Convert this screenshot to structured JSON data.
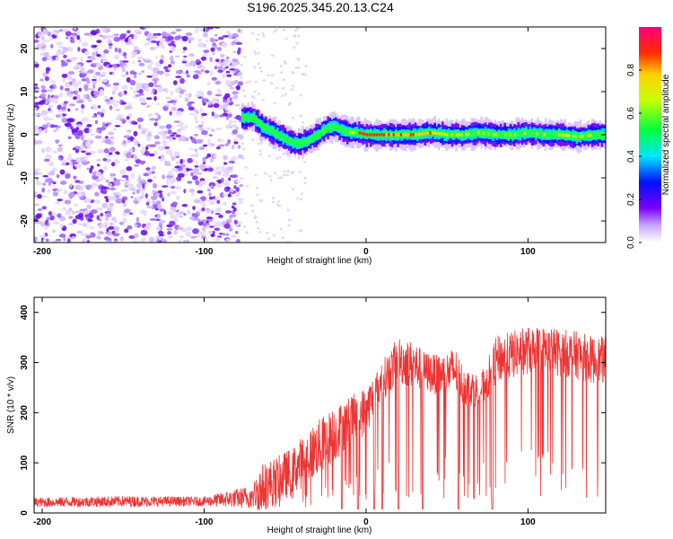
{
  "title": "S196.2025.345.20.13.C24",
  "chart_data": [
    {
      "type": "heatmap",
      "name": "spectrogram",
      "xlabel": "Height of straight line (km)",
      "ylabel": "Frequency (Hz)",
      "xlim": [
        -205,
        148
      ],
      "ylim": [
        -25,
        25
      ],
      "xticks": [
        -200,
        -100,
        0,
        100
      ],
      "yticks": [
        -20,
        -10,
        0,
        10,
        20
      ],
      "colorbar": {
        "label": "Normalized spectral amplitude",
        "range": [
          0.0,
          1.0
        ],
        "ticks": [
          0.0,
          0.2,
          0.4,
          0.6,
          0.8
        ]
      },
      "noise_region_x": [
        -205,
        -77
      ],
      "ridge": {
        "x": [
          -77,
          -70,
          -65,
          -60,
          -55,
          -50,
          -45,
          -40,
          -35,
          -30,
          -25,
          -20,
          -15,
          -10,
          -5,
          0,
          10,
          20,
          30,
          40,
          50,
          60,
          70,
          80,
          90,
          100,
          110,
          120,
          130,
          140,
          148
        ],
        "freq": [
          4,
          4,
          2,
          1,
          0,
          -1,
          -2,
          -2,
          -1,
          0,
          1.5,
          2,
          1,
          0.5,
          0.5,
          0,
          0,
          0,
          0,
          0.5,
          0,
          0,
          0.5,
          0,
          0,
          0.5,
          0,
          0,
          -0.5,
          0,
          0
        ]
      }
    },
    {
      "type": "line",
      "name": "snr",
      "xlabel": "Height of straight line (km)",
      "ylabel": "SNR (10 * v/v)",
      "xlim": [
        -205,
        148
      ],
      "ylim": [
        0,
        430
      ],
      "xticks": [
        -200,
        -100,
        0,
        100
      ],
      "yticks": [
        0,
        100,
        200,
        300,
        400
      ],
      "color": "#ee3333",
      "envelope": {
        "x": [
          -205,
          -150,
          -100,
          -70,
          -65,
          -55,
          -45,
          -35,
          -20,
          -10,
          0,
          10,
          20,
          30,
          35,
          45,
          55,
          60,
          70,
          75,
          80,
          90,
          100,
          110,
          120,
          130,
          140,
          148
        ],
        "base": [
          20,
          22,
          22,
          30,
          45,
          60,
          80,
          110,
          150,
          180,
          200,
          260,
          300,
          290,
          280,
          270,
          280,
          250,
          240,
          260,
          300,
          310,
          320,
          320,
          315,
          310,
          300,
          300
        ],
        "spread": [
          12,
          14,
          12,
          30,
          60,
          60,
          60,
          70,
          70,
          60,
          60,
          50,
          60,
          60,
          50,
          50,
          60,
          50,
          40,
          50,
          60,
          60,
          60,
          60,
          60,
          60,
          60,
          60
        ]
      },
      "dropouts_x": [
        -15,
        -5,
        5,
        10,
        20,
        35,
        57,
        78
      ]
    }
  ]
}
